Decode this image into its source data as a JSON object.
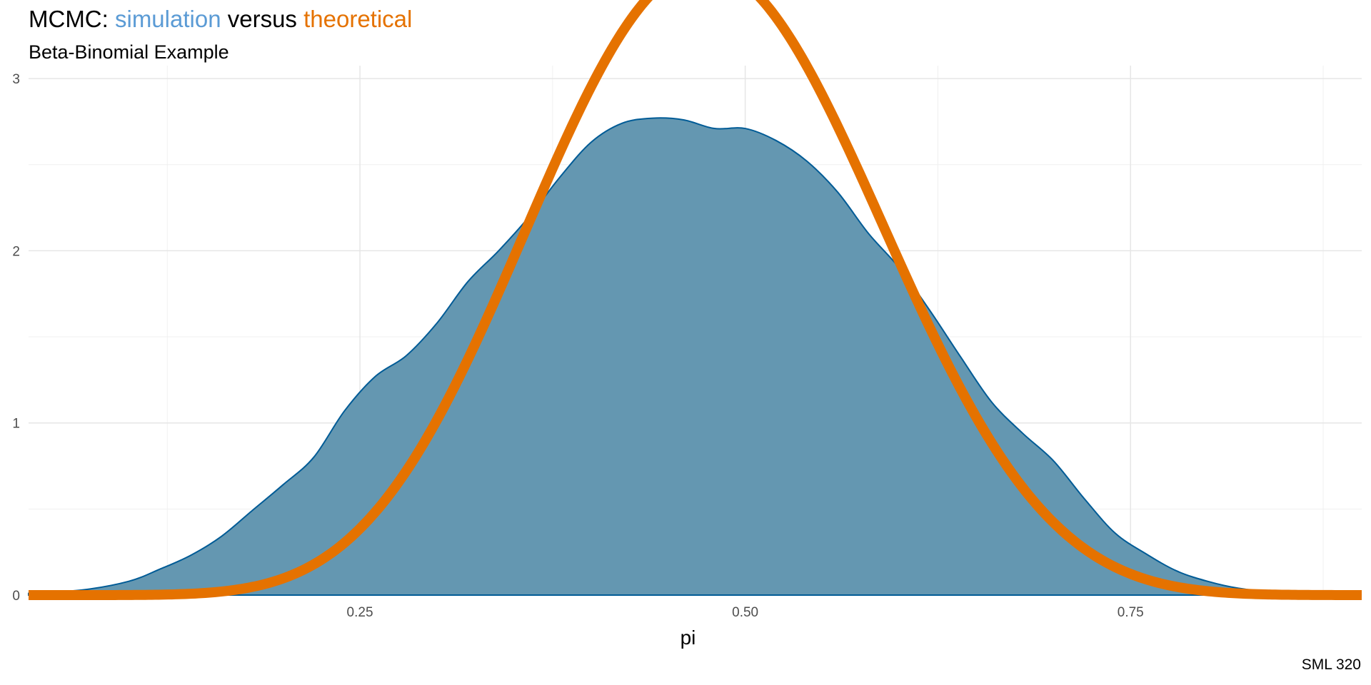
{
  "chart_data": {
    "type": "area",
    "title": {
      "prefix": "MCMC: ",
      "simulation": "simulation",
      "middle": " versus ",
      "theoretical": "theoretical"
    },
    "subtitle": "Beta-Binomial Example",
    "caption": "SML 320",
    "xlabel": "pi",
    "ylabel": "",
    "xlim": [
      0.035,
      0.9
    ],
    "ylim": [
      0,
      3.05
    ],
    "x_ticks": [
      0.25,
      0.5,
      0.75
    ],
    "x_tick_labels": [
      "0.25",
      "0.50",
      "0.75"
    ],
    "y_ticks": [
      0,
      1,
      2,
      3
    ],
    "y_tick_labels": [
      "0",
      "1",
      "2",
      "3"
    ],
    "grid": true,
    "theoretical_distribution": {
      "family": "beta",
      "alpha": 10.18,
      "beta": 11.22
    },
    "series": [
      {
        "name": "simulation",
        "type": "density-area",
        "fill": "#6497b1",
        "stroke": "#005b96",
        "x": [
          0.035,
          0.07,
          0.1,
          0.12,
          0.14,
          0.16,
          0.18,
          0.2,
          0.22,
          0.24,
          0.26,
          0.28,
          0.3,
          0.32,
          0.34,
          0.36,
          0.38,
          0.4,
          0.42,
          0.44,
          0.46,
          0.48,
          0.5,
          0.52,
          0.54,
          0.56,
          0.58,
          0.6,
          0.62,
          0.64,
          0.66,
          0.68,
          0.7,
          0.72,
          0.74,
          0.76,
          0.78,
          0.8,
          0.82,
          0.85,
          0.9
        ],
        "y": [
          0.01,
          0.03,
          0.08,
          0.15,
          0.23,
          0.34,
          0.49,
          0.64,
          0.8,
          1.07,
          1.27,
          1.39,
          1.58,
          1.82,
          2.0,
          2.2,
          2.43,
          2.63,
          2.74,
          2.77,
          2.76,
          2.71,
          2.71,
          2.64,
          2.52,
          2.34,
          2.1,
          1.9,
          1.65,
          1.38,
          1.12,
          0.94,
          0.78,
          0.56,
          0.36,
          0.24,
          0.14,
          0.08,
          0.04,
          0.01,
          0.0
        ]
      },
      {
        "name": "theoretical",
        "type": "line",
        "color": "#e57200"
      }
    ]
  }
}
